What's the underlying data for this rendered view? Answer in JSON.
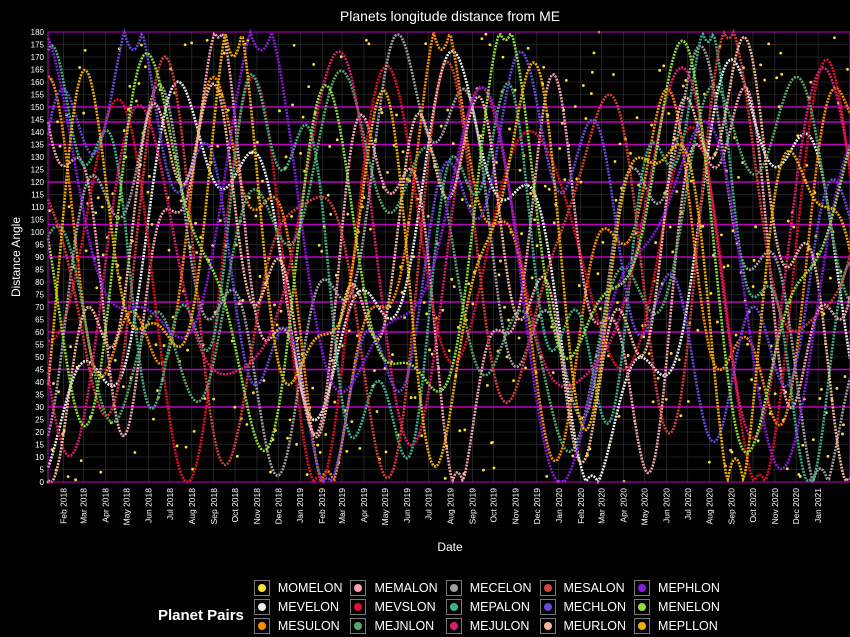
{
  "chart_data": {
    "type": "line",
    "title": "Planets longitude distance from ME",
    "xlabel": "Date",
    "ylabel": "Distance Angle",
    "xlim": [
      "2018-01-10",
      "2021-02-15"
    ],
    "ylim": [
      0,
      180
    ],
    "y_ticks": [
      0,
      5,
      10,
      15,
      20,
      25,
      30,
      35,
      40,
      45,
      50,
      55,
      60,
      65,
      70,
      75,
      80,
      85,
      90,
      95,
      100,
      105,
      110,
      115,
      120,
      125,
      130,
      135,
      140,
      145,
      150,
      155,
      160,
      165,
      170,
      175,
      180
    ],
    "x_tick_labels": [
      "Feb 2018",
      "Mar 2018",
      "Apr 2018",
      "May 2018",
      "Jun 2018",
      "Jul 2018",
      "Aug 2018",
      "Sep 2018",
      "Oct 2018",
      "Nov 2018",
      "Dec 2018",
      "Jan 2019",
      "Feb 2019",
      "Mar 2019",
      "Apr 2019",
      "May 2019",
      "Jun 2019",
      "Jul 2019",
      "Aug 2019",
      "Sep 2019",
      "Oct 2019",
      "Nov 2019",
      "Dec 2019",
      "Jan 2020",
      "Feb 2020",
      "Mar 2020",
      "Apr 2020",
      "May 2020",
      "Jun 2020",
      "Jul 2020",
      "Aug 2020",
      "Sep 2020",
      "Oct 2020",
      "Nov 2020",
      "Dec 2020",
      "Jan 2021"
    ],
    "x_tick_dates": [
      "2018-02-01",
      "2018-03-01",
      "2018-04-01",
      "2018-05-01",
      "2018-06-01",
      "2018-07-01",
      "2018-08-01",
      "2018-09-01",
      "2018-10-01",
      "2018-11-01",
      "2018-12-01",
      "2019-01-01",
      "2019-02-01",
      "2019-03-01",
      "2019-04-01",
      "2019-05-01",
      "2019-06-01",
      "2019-07-01",
      "2019-08-01",
      "2019-09-01",
      "2019-10-01",
      "2019-11-01",
      "2019-12-01",
      "2020-01-01",
      "2020-02-01",
      "2020-03-01",
      "2020-04-01",
      "2020-05-01",
      "2020-06-01",
      "2020-07-01",
      "2020-08-01",
      "2020-09-01",
      "2020-10-01",
      "2020-11-01",
      "2020-12-01",
      "2021-01-01"
    ],
    "aspect_lines": [
      30,
      45,
      60,
      72,
      90,
      103,
      120,
      135,
      144,
      150
    ],
    "grid": true,
    "legend_title": "Planet Pairs",
    "legend_position": "bottom",
    "series": [
      {
        "name": "MOMELON",
        "color": "#ffe135"
      },
      {
        "name": "MEVELON",
        "color": "#f0f0f0"
      },
      {
        "name": "MESULON",
        "color": "#ff8c00"
      },
      {
        "name": "MEMALON",
        "color": "#f4a3b0"
      },
      {
        "name": "MEVSLON",
        "color": "#e0102a"
      },
      {
        "name": "MEJNLON",
        "color": "#59a86a"
      },
      {
        "name": "MECELON",
        "color": "#a0a0a0"
      },
      {
        "name": "MEPALON",
        "color": "#3fb08a"
      },
      {
        "name": "MEJULON",
        "color": "#d81e6e"
      },
      {
        "name": "MESALON",
        "color": "#d2403a"
      },
      {
        "name": "MECHLON",
        "color": "#6a4bd8"
      },
      {
        "name": "MEURLON",
        "color": "#f2b89a"
      },
      {
        "name": "MEPHLON",
        "color": "#8a1ae0"
      },
      {
        "name": "MENELON",
        "color": "#8fe03a"
      },
      {
        "name": "MEPLLON",
        "color": "#f0b000"
      }
    ]
  },
  "colors": {
    "background": "#000000",
    "grid": "#3a3a3a",
    "aspect_line": "#c000c0",
    "border": "#c000c0"
  }
}
